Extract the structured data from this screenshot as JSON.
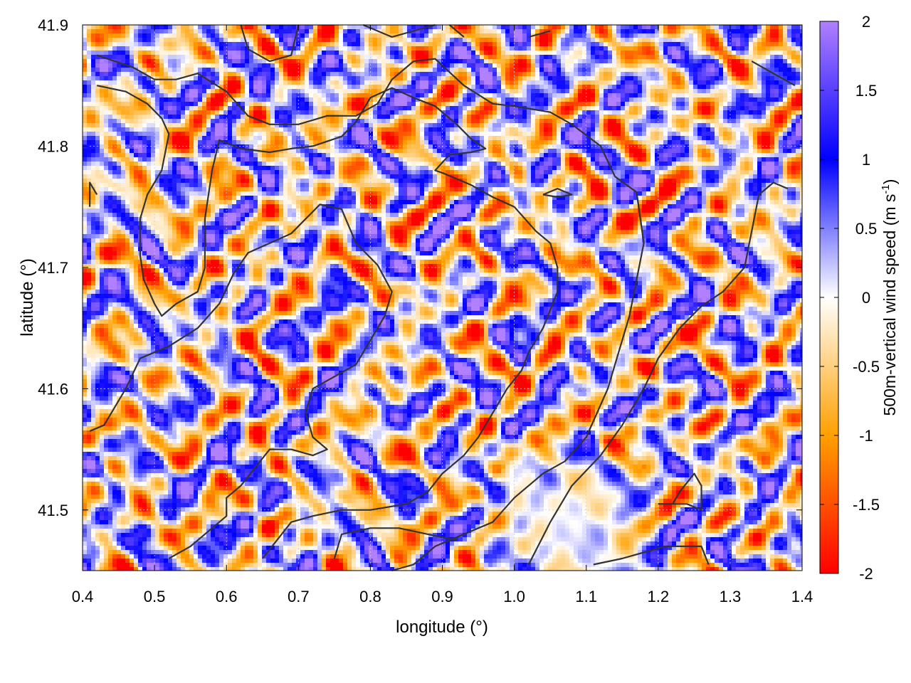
{
  "chart_data": {
    "type": "heatmap",
    "title": "",
    "xlabel": "longitude (°)",
    "ylabel": "latitude (°)",
    "xlim": [
      0.4,
      1.4
    ],
    "ylim": [
      41.45,
      41.9
    ],
    "xticks": [
      0.4,
      0.5,
      0.6,
      0.7,
      0.8,
      0.9,
      1.0,
      1.1,
      1.2,
      1.3,
      1.4
    ],
    "xtick_labels": [
      "0.4",
      "0.5",
      "0.6",
      "0.7",
      "0.8",
      "0.9",
      "1.0",
      "1.1",
      "1.2",
      "1.3",
      "1.4"
    ],
    "yticks": [
      41.5,
      41.6,
      41.7,
      41.8,
      41.9
    ],
    "ytick_labels": [
      "41.5",
      "41.6",
      "41.7",
      "41.8",
      "41.9"
    ],
    "grid": true,
    "colorbar": {
      "label_main": "500m-vertical wind speed (m s",
      "label_sup": "-1",
      "label_end": ")",
      "range": [
        -2,
        2
      ],
      "ticks": [
        2,
        1.5,
        1,
        0.5,
        0,
        -0.5,
        -1,
        -1.5,
        -2
      ],
      "tick_labels": [
        "2",
        "1.5",
        "1",
        "0.5",
        "0",
        "-0.5",
        "-1",
        "-1.5",
        "-2"
      ],
      "colors": [
        "#ff0000",
        "#ffa000",
        "#ffffff",
        "#0000ff",
        "#b080ff"
      ],
      "color_stops": [
        -2,
        -1,
        0,
        1,
        2
      ]
    },
    "calm_region": {
      "lon": 1.08,
      "lat": 41.49,
      "radius_lon": 0.13,
      "radius_lat": 0.07
    },
    "contours": [
      [
        [
          0.42,
          41.875
        ],
        [
          0.47,
          41.865
        ],
        [
          0.5,
          41.855
        ],
        [
          0.53,
          41.855
        ],
        [
          0.56,
          41.86
        ],
        [
          0.6,
          41.845
        ],
        [
          0.63,
          41.825
        ],
        [
          0.66,
          41.818
        ],
        [
          0.7,
          41.818
        ],
        [
          0.74,
          41.825
        ],
        [
          0.78,
          41.825
        ],
        [
          0.81,
          41.835
        ],
        [
          0.83,
          41.855
        ],
        [
          0.86,
          41.87
        ],
        [
          0.89,
          41.872
        ],
        [
          0.93,
          41.85
        ],
        [
          0.97,
          41.835
        ],
        [
          1.0,
          41.833
        ],
        [
          1.05,
          41.828
        ],
        [
          1.08,
          41.818
        ],
        [
          1.12,
          41.8
        ],
        [
          1.14,
          41.775
        ],
        [
          1.17,
          41.762
        ],
        [
          1.18,
          41.72
        ],
        [
          1.16,
          41.66
        ],
        [
          1.13,
          41.6
        ],
        [
          1.1,
          41.56
        ],
        [
          1.07,
          41.54
        ],
        [
          1.04,
          41.53
        ],
        [
          1.0,
          41.51
        ],
        [
          0.97,
          41.49
        ],
        [
          0.93,
          41.48
        ],
        [
          0.89,
          41.47
        ],
        [
          0.86,
          41.455
        ],
        [
          0.83,
          41.45
        ]
      ],
      [
        [
          0.42,
          41.85
        ],
        [
          0.46,
          41.845
        ],
        [
          0.49,
          41.835
        ],
        [
          0.51,
          41.823
        ],
        [
          0.52,
          41.81
        ],
        [
          0.51,
          41.78
        ],
        [
          0.49,
          41.76
        ],
        [
          0.48,
          41.74
        ],
        [
          0.48,
          41.71
        ],
        [
          0.485,
          41.69
        ],
        [
          0.5,
          41.67
        ],
        [
          0.51,
          41.66
        ],
        [
          0.53,
          41.67
        ],
        [
          0.56,
          41.68
        ],
        [
          0.57,
          41.7
        ],
        [
          0.57,
          41.74
        ],
        [
          0.58,
          41.78
        ],
        [
          0.59,
          41.805
        ],
        [
          0.62,
          41.798
        ],
        [
          0.66,
          41.795
        ],
        [
          0.69,
          41.798
        ],
        [
          0.72,
          41.8
        ],
        [
          0.76,
          41.808
        ],
        [
          0.78,
          41.82
        ],
        [
          0.8,
          41.84
        ],
        [
          0.83,
          41.848
        ],
        [
          0.86,
          41.84
        ],
        [
          0.89,
          41.833
        ],
        [
          0.92,
          41.818
        ],
        [
          0.94,
          41.806
        ],
        [
          0.96,
          41.798
        ],
        [
          0.94,
          41.795
        ],
        [
          0.91,
          41.793
        ],
        [
          0.89,
          41.78
        ],
        [
          0.9,
          41.778
        ],
        [
          0.94,
          41.768
        ],
        [
          0.97,
          41.758
        ],
        [
          1.0,
          41.75
        ],
        [
          1.03,
          41.73
        ],
        [
          1.05,
          41.72
        ],
        [
          1.06,
          41.7
        ],
        [
          1.06,
          41.68
        ],
        [
          1.04,
          41.65
        ],
        [
          1.02,
          41.63
        ],
        [
          1.01,
          41.615
        ],
        [
          0.99,
          41.6
        ],
        [
          0.97,
          41.58
        ],
        [
          0.95,
          41.56
        ],
        [
          0.93,
          41.545
        ],
        [
          0.9,
          41.53
        ],
        [
          0.88,
          41.515
        ],
        [
          0.85,
          41.505
        ],
        [
          0.8,
          41.5
        ],
        [
          0.76,
          41.5
        ],
        [
          0.72,
          41.495
        ],
        [
          0.69,
          41.49
        ],
        [
          0.67,
          41.475
        ],
        [
          0.65,
          41.46
        ]
      ],
      [
        [
          0.41,
          41.565
        ],
        [
          0.43,
          41.57
        ],
        [
          0.46,
          41.6
        ],
        [
          0.48,
          41.625
        ],
        [
          0.52,
          41.635
        ],
        [
          0.56,
          41.65
        ],
        [
          0.59,
          41.67
        ],
        [
          0.61,
          41.695
        ],
        [
          0.63,
          41.712
        ],
        [
          0.66,
          41.72
        ],
        [
          0.69,
          41.728
        ],
        [
          0.71,
          41.74
        ],
        [
          0.73,
          41.752
        ],
        [
          0.76,
          41.748
        ],
        [
          0.78,
          41.72
        ],
        [
          0.81,
          41.702
        ],
        [
          0.83,
          41.68
        ],
        [
          0.82,
          41.66
        ],
        [
          0.8,
          41.64
        ],
        [
          0.78,
          41.62
        ],
        [
          0.75,
          41.61
        ],
        [
          0.72,
          41.6
        ],
        [
          0.71,
          41.58
        ],
        [
          0.72,
          41.56
        ],
        [
          0.74,
          41.55
        ],
        [
          0.72,
          41.545
        ],
        [
          0.69,
          41.55
        ],
        [
          0.66,
          41.55
        ],
        [
          0.64,
          41.535
        ],
        [
          0.62,
          41.52
        ],
        [
          0.6,
          41.51
        ],
        [
          0.6,
          41.495
        ],
        [
          0.58,
          41.485
        ],
        [
          0.55,
          41.47
        ],
        [
          0.52,
          41.46
        ]
      ],
      [
        [
          0.75,
          41.46
        ],
        [
          0.76,
          41.48
        ],
        [
          0.8,
          41.485
        ],
        [
          0.84,
          41.485
        ],
        [
          0.88,
          41.48
        ],
        [
          0.92,
          41.475
        ]
      ],
      [
        [
          1.02,
          41.455
        ],
        [
          1.05,
          41.49
        ],
        [
          1.08,
          41.52
        ],
        [
          1.12,
          41.545
        ],
        [
          1.15,
          41.57
        ],
        [
          1.18,
          41.6
        ],
        [
          1.2,
          41.625
        ],
        [
          1.23,
          41.65
        ],
        [
          1.26,
          41.668
        ],
        [
          1.29,
          41.68
        ],
        [
          1.32,
          41.7
        ],
        [
          1.33,
          41.73
        ],
        [
          1.34,
          41.76
        ],
        [
          1.36,
          41.77
        ],
        [
          1.38,
          41.765
        ]
      ],
      [
        [
          1.11,
          41.455
        ],
        [
          1.15,
          41.46
        ],
        [
          1.18,
          41.465
        ],
        [
          1.21,
          41.47
        ],
        [
          1.26,
          41.47
        ],
        [
          1.27,
          41.455
        ]
      ],
      [
        [
          1.2,
          41.505
        ],
        [
          1.24,
          41.505
        ],
        [
          1.26,
          41.5
        ],
        [
          1.26,
          41.52
        ],
        [
          1.25,
          41.53
        ],
        [
          1.23,
          41.515
        ],
        [
          1.22,
          41.505
        ]
      ],
      [
        [
          1.04,
          41.76
        ],
        [
          1.06,
          41.765
        ],
        [
          1.08,
          41.76
        ],
        [
          1.06,
          41.758
        ],
        [
          1.04,
          41.76
        ]
      ],
      [
        [
          0.62,
          41.9
        ],
        [
          0.63,
          41.88
        ],
        [
          0.66,
          41.87
        ],
        [
          0.69,
          41.875
        ],
        [
          0.7,
          41.9
        ]
      ],
      [
        [
          0.79,
          41.9
        ],
        [
          0.83,
          41.89
        ],
        [
          0.86,
          41.895
        ],
        [
          0.89,
          41.9
        ]
      ],
      [
        [
          0.91,
          41.9
        ],
        [
          0.93,
          41.89
        ]
      ],
      [
        [
          1.02,
          41.89
        ],
        [
          1.05,
          41.895
        ]
      ],
      [
        [
          1.33,
          41.87
        ],
        [
          1.36,
          41.86
        ],
        [
          1.39,
          41.85
        ]
      ],
      [
        [
          0.41,
          41.75
        ],
        [
          0.41,
          41.77
        ],
        [
          0.42,
          41.76
        ]
      ]
    ]
  }
}
